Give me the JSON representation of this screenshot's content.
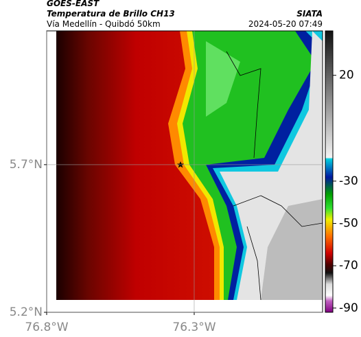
{
  "header": {
    "satellite": "GOES-EAST",
    "product": "Temperatura de Brillo CH13",
    "region": "Vía Medellín - Quibdó 50km",
    "source": "SIATA",
    "timestamp": "2024-05-20 07:49"
  },
  "map": {
    "lon_lim": [
      -76.8,
      -75.865
    ],
    "lat_lim": [
      5.2,
      6.153
    ],
    "lon_ticks": [
      {
        "value": -76.8,
        "label": "76.8°W"
      },
      {
        "value": -76.3,
        "label": "76.3°W"
      }
    ],
    "lat_ticks": [
      {
        "value": 5.2,
        "label": "5.2°N"
      },
      {
        "value": 5.7,
        "label": "5.7°N"
      }
    ],
    "grid": true
  },
  "colorbar": {
    "clim": [
      -92,
      41
    ],
    "ticks": [
      20,
      -30,
      -50,
      -70,
      -90
    ]
  }
}
